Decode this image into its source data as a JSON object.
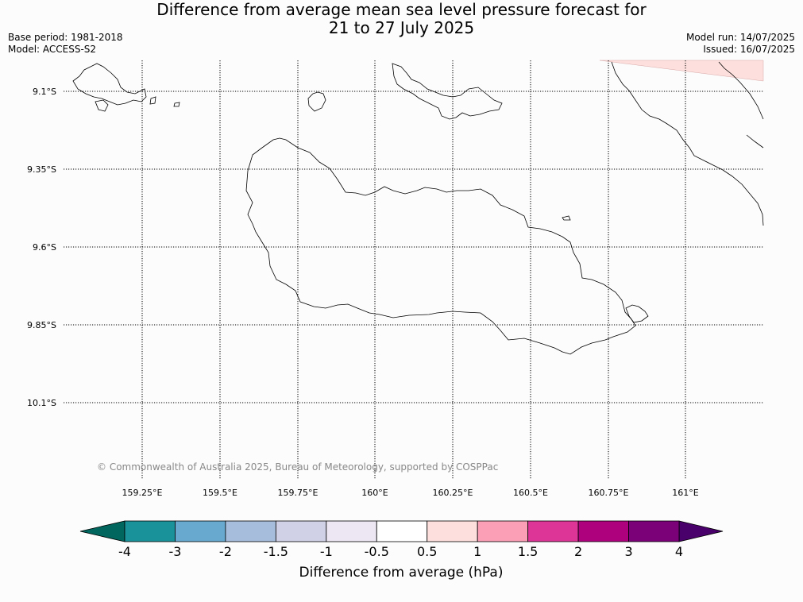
{
  "header": {
    "title_line1": "Difference from average mean sea level pressure forecast for",
    "title_line2": "21 to 27 July 2025",
    "base_period": "Base period: 1981-2018",
    "model": "Model: ACCESS-S2",
    "model_run": "Model run: 14/07/2025",
    "issued": "Issued: 16/07/2025"
  },
  "map": {
    "lon_labels": [
      "159.25°E",
      "159.5°E",
      "159.75°E",
      "160°E",
      "160.25°E",
      "160.5°E",
      "160.75°E",
      "161°E"
    ],
    "lat_labels": [
      "9.1°S",
      "9.35°S",
      "9.6°S",
      "9.85°S",
      "10.1°S"
    ],
    "grid": "dotted",
    "copyright": "© Commonwealth of Australia 2025, Bureau of Meteorology, supported by COSPPac",
    "shaded_area": {
      "category": "0.5 to 1",
      "location": "top-right corner",
      "color": "#fde0dd"
    }
  },
  "colorbar": {
    "label": "Difference from average (hPa)",
    "ticks": [
      "-4",
      "-3",
      "-2",
      "-1.5",
      "-1",
      "-0.5",
      "0.5",
      "1",
      "1.5",
      "2",
      "3",
      "4"
    ],
    "colors": [
      "#1a9299",
      "#67a9cf",
      "#a6bddb",
      "#d0d1e6",
      "#ece7f2",
      "#ffffff",
      "#fde0dd",
      "#fa9fb5",
      "#dd3497",
      "#ae017e",
      "#7a0177"
    ],
    "under_color": "#01665e",
    "over_color": "#49006a"
  }
}
